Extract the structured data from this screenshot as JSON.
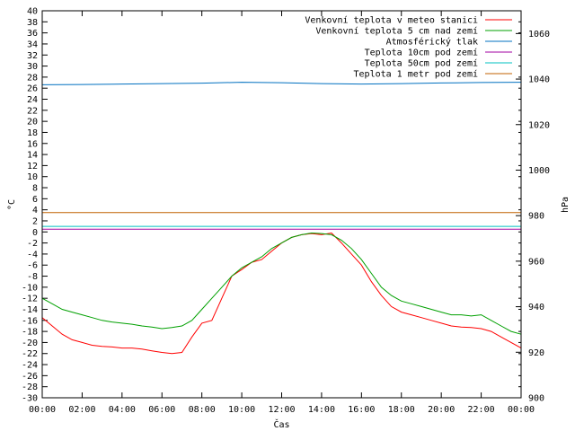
{
  "chart_data": {
    "type": "line",
    "title": "",
    "xlabel": "Čas",
    "ylabel_left": "°C",
    "ylabel_right": "hPa",
    "x_ticks": [
      "00:00",
      "02:00",
      "04:00",
      "06:00",
      "08:00",
      "10:00",
      "12:00",
      "14:00",
      "16:00",
      "18:00",
      "20:00",
      "22:00",
      "00:00"
    ],
    "x_range_hours": [
      0,
      24
    ],
    "y_left_range": [
      -30,
      40
    ],
    "y_left_step": 2,
    "y_right_range": [
      900,
      1070
    ],
    "y_right_ticks": [
      900,
      920,
      940,
      960,
      980,
      1000,
      1020,
      1040,
      1060
    ],
    "legend_position": "top-right",
    "grid": false,
    "series": [
      {
        "name": "Venkovní teplota v meteo stanici",
        "color": "#ff0000",
        "axis": "left",
        "x": [
          0,
          0.5,
          1,
          1.5,
          2,
          2.5,
          3,
          3.5,
          4,
          4.5,
          5,
          5.5,
          6,
          6.5,
          7,
          7.5,
          8,
          8.5,
          9,
          9.5,
          10,
          10.5,
          11,
          11.5,
          12,
          12.5,
          13,
          13.5,
          14,
          14.5,
          15,
          15.5,
          16,
          16.5,
          17,
          17.5,
          18,
          18.5,
          19,
          19.5,
          20,
          20.5,
          21,
          21.5,
          22,
          22.5,
          23,
          23.5,
          24
        ],
        "values": [
          -15.5,
          -17.0,
          -18.5,
          -19.5,
          -20.0,
          -20.5,
          -20.7,
          -20.8,
          -21.0,
          -21.0,
          -21.2,
          -21.5,
          -21.8,
          -22.0,
          -21.8,
          -19.0,
          -16.5,
          -16.0,
          -12.0,
          -8.0,
          -6.8,
          -5.5,
          -5.0,
          -3.5,
          -2.0,
          -1.0,
          -0.5,
          -0.3,
          -0.5,
          -0.2,
          -2.0,
          -4.0,
          -6.0,
          -9.0,
          -11.5,
          -13.5,
          -14.5,
          -15.0,
          -15.5,
          -16.0,
          -16.5,
          -17.0,
          -17.2,
          -17.3,
          -17.5,
          -18.0,
          -19.0,
          -20.0,
          -21.0
        ]
      },
      {
        "name": "Venkovní teplota 5 cm nad zemí",
        "color": "#00a000",
        "axis": "left",
        "x": [
          0,
          0.5,
          1,
          1.5,
          2,
          2.5,
          3,
          3.5,
          4,
          4.5,
          5,
          5.5,
          6,
          6.5,
          7,
          7.5,
          8,
          8.5,
          9,
          9.5,
          10,
          10.5,
          11,
          11.5,
          12,
          12.5,
          13,
          13.5,
          14,
          14.5,
          15,
          15.5,
          16,
          16.5,
          17,
          17.5,
          18,
          18.5,
          19,
          19.5,
          20,
          20.5,
          21,
          21.5,
          22,
          22.5,
          23,
          23.5,
          24
        ],
        "values": [
          -12.0,
          -13.0,
          -14.0,
          -14.5,
          -15.0,
          -15.5,
          -16.0,
          -16.3,
          -16.5,
          -16.7,
          -17.0,
          -17.2,
          -17.5,
          -17.3,
          -17.0,
          -16.0,
          -14.0,
          -12.0,
          -10.0,
          -8.0,
          -6.5,
          -5.5,
          -4.5,
          -3.0,
          -2.0,
          -1.0,
          -0.5,
          -0.2,
          -0.3,
          -0.5,
          -1.5,
          -3.0,
          -5.0,
          -7.5,
          -10.0,
          -11.5,
          -12.5,
          -13.0,
          -13.5,
          -14.0,
          -14.5,
          -15.0,
          -15.0,
          -15.2,
          -15.0,
          -16.0,
          -17.0,
          -18.0,
          -18.5
        ]
      },
      {
        "name": "Atmosférický tlak",
        "color": "#0070c0",
        "axis": "right",
        "x": [
          0,
          2,
          4,
          6,
          8,
          10,
          12,
          14,
          16,
          18,
          20,
          22,
          24
        ],
        "values": [
          1037.5,
          1037.6,
          1037.8,
          1038.0,
          1038.2,
          1038.6,
          1038.4,
          1038.0,
          1037.8,
          1038.0,
          1038.3,
          1038.5,
          1038.6
        ]
      },
      {
        "name": "Teplota 10cm pod zemí",
        "color": "#a000a0",
        "axis": "left",
        "x": [
          0,
          24
        ],
        "values": [
          0.5,
          0.5
        ]
      },
      {
        "name": "Teplota 50cm pod zemí",
        "color": "#00c0c0",
        "axis": "left",
        "x": [
          0,
          24
        ],
        "values": [
          1.0,
          1.0
        ]
      },
      {
        "name": "Teplota 1 metr pod zemí",
        "color": "#c06000",
        "axis": "left",
        "x": [
          0,
          24
        ],
        "values": [
          3.5,
          3.5
        ]
      }
    ]
  }
}
